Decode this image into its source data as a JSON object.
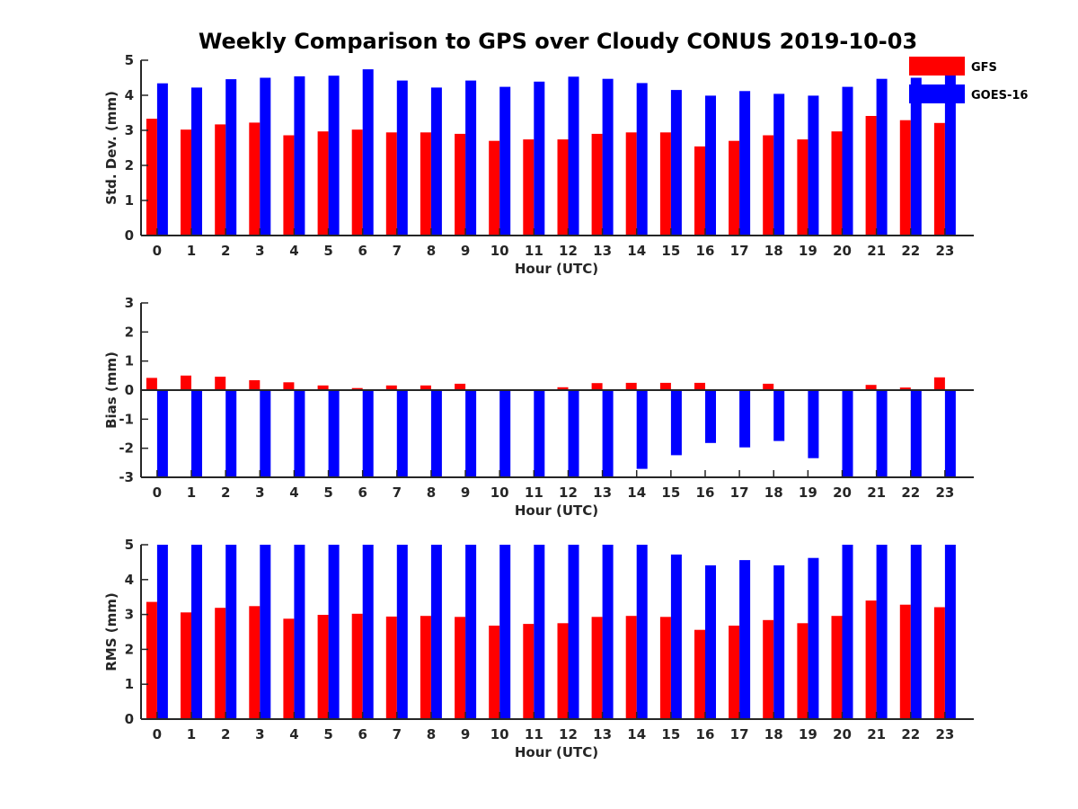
{
  "title": "Weekly Comparison to GPS over Cloudy CONUS 2019-10-03",
  "colors": {
    "GFS": "#ff0000",
    "GOES-16": "#0000ff",
    "axis": "#262626"
  },
  "legend": {
    "placement": "top-right",
    "entries": [
      "GFS",
      "GOES-16"
    ]
  },
  "chart_data": [
    {
      "type": "bar",
      "categories": [
        "0",
        "1",
        "2",
        "3",
        "4",
        "5",
        "6",
        "7",
        "8",
        "9",
        "10",
        "11",
        "12",
        "13",
        "14",
        "15",
        "16",
        "17",
        "18",
        "19",
        "20",
        "21",
        "22",
        "23"
      ],
      "xlabel": "Hour (UTC)",
      "ylabel": "Std. Dev. (mm)",
      "ylim": [
        0,
        5
      ],
      "yticks": [
        "0",
        "1",
        "2",
        "3",
        "4",
        "5"
      ],
      "series": [
        {
          "name": "GFS",
          "values": [
            3.33,
            3.02,
            3.17,
            3.22,
            2.86,
            2.97,
            3.02,
            2.94,
            2.94,
            2.9,
            2.7,
            2.74,
            2.74,
            2.9,
            2.94,
            2.94,
            2.54,
            2.7,
            2.86,
            2.74,
            2.97,
            3.41,
            3.29,
            3.21
          ]
        },
        {
          "name": "GOES-16",
          "values": [
            4.34,
            4.22,
            4.46,
            4.5,
            4.54,
            4.56,
            4.74,
            4.42,
            4.22,
            4.42,
            4.24,
            4.39,
            4.53,
            4.47,
            4.35,
            4.15,
            3.99,
            4.12,
            4.04,
            3.99,
            4.24,
            4.47,
            4.5,
            4.7
          ]
        }
      ]
    },
    {
      "type": "bar",
      "categories": [
        "0",
        "1",
        "2",
        "3",
        "4",
        "5",
        "6",
        "7",
        "8",
        "9",
        "10",
        "11",
        "12",
        "13",
        "14",
        "15",
        "16",
        "17",
        "18",
        "19",
        "20",
        "21",
        "22",
        "23"
      ],
      "xlabel": "Hour (UTC)",
      "ylabel": "Bias (mm)",
      "ylim": [
        -3,
        3
      ],
      "yticks": [
        "-3",
        "-2",
        "-1",
        "0",
        "1",
        "2",
        "3"
      ],
      "series": [
        {
          "name": "GFS",
          "values": [
            0.42,
            0.5,
            0.46,
            0.34,
            0.27,
            0.16,
            0.07,
            0.16,
            0.16,
            0.22,
            0.03,
            -0.03,
            0.1,
            0.24,
            0.25,
            0.25,
            0.25,
            -0.03,
            0.22,
            0.0,
            0.03,
            0.18,
            0.09,
            0.44
          ]
        },
        {
          "name": "GOES-16",
          "values": [
            -3.0,
            -3.0,
            -3.0,
            -3.0,
            -3.0,
            -3.0,
            -3.0,
            -3.0,
            -3.0,
            -3.0,
            -3.0,
            -3.0,
            -3.0,
            -3.0,
            -2.71,
            -2.24,
            -1.82,
            -1.97,
            -1.75,
            -2.34,
            -2.97,
            -3.0,
            -3.0,
            -3.0
          ]
        }
      ]
    },
    {
      "type": "bar",
      "categories": [
        "0",
        "1",
        "2",
        "3",
        "4",
        "5",
        "6",
        "7",
        "8",
        "9",
        "10",
        "11",
        "12",
        "13",
        "14",
        "15",
        "16",
        "17",
        "18",
        "19",
        "20",
        "21",
        "22",
        "23"
      ],
      "xlabel": "Hour (UTC)",
      "ylabel": "RMS (mm)",
      "ylim": [
        0,
        5
      ],
      "yticks": [
        "0",
        "1",
        "2",
        "3",
        "4",
        "5"
      ],
      "series": [
        {
          "name": "GFS",
          "values": [
            3.36,
            3.06,
            3.19,
            3.24,
            2.88,
            2.99,
            3.02,
            2.94,
            2.96,
            2.93,
            2.68,
            2.73,
            2.75,
            2.93,
            2.96,
            2.93,
            2.56,
            2.68,
            2.84,
            2.75,
            2.96,
            3.4,
            3.28,
            3.21
          ]
        },
        {
          "name": "GOES-16",
          "values": [
            5.0,
            5.0,
            5.0,
            5.0,
            5.0,
            5.0,
            5.0,
            5.0,
            5.0,
            5.0,
            5.0,
            5.0,
            5.0,
            5.0,
            5.0,
            4.72,
            4.41,
            4.56,
            4.41,
            4.62,
            5.0,
            5.0,
            5.0,
            5.0
          ]
        }
      ]
    }
  ]
}
